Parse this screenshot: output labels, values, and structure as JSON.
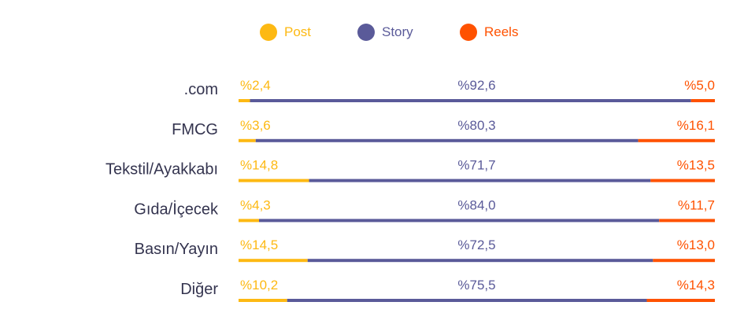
{
  "chart_data": {
    "type": "bar",
    "stacked": true,
    "orientation": "horizontal",
    "legend_position": "top-center",
    "series": [
      {
        "name": "Post",
        "color": "#FDB913",
        "values": [
          2.4,
          3.6,
          14.8,
          4.3,
          14.5,
          10.2
        ]
      },
      {
        "name": "Story",
        "color": "#5A5A99",
        "values": [
          92.6,
          80.3,
          71.7,
          84.0,
          72.5,
          75.5
        ]
      },
      {
        "name": "Reels",
        "color": "#FF5200",
        "values": [
          5.0,
          16.1,
          13.5,
          11.7,
          13.0,
          14.3
        ]
      }
    ],
    "categories": [
      ".com",
      "FMCG",
      "Tekstil/Ayakkabı",
      "Gıda/İçecek",
      "Basın/Yayın",
      "Diğer"
    ],
    "value_labels": [
      [
        "%2,4",
        "%92,6",
        "%5,0"
      ],
      [
        "%3,6",
        "%80,3",
        "%16,1"
      ],
      [
        "%14,8",
        "%71,7",
        "%13,5"
      ],
      [
        "%4,3",
        "%84,0",
        "%11,7"
      ],
      [
        "%14,5",
        "%72,5",
        "%13,0"
      ],
      [
        "%10,2",
        "%75,5",
        "%14,3"
      ]
    ]
  },
  "legend": {
    "post": {
      "label": "Post",
      "color": "#FDB913"
    },
    "story": {
      "label": "Story",
      "color": "#5A5A99"
    },
    "reels": {
      "label": "Reels",
      "color": "#FF5200"
    }
  },
  "colors": {
    "category_text": "#34344F"
  }
}
